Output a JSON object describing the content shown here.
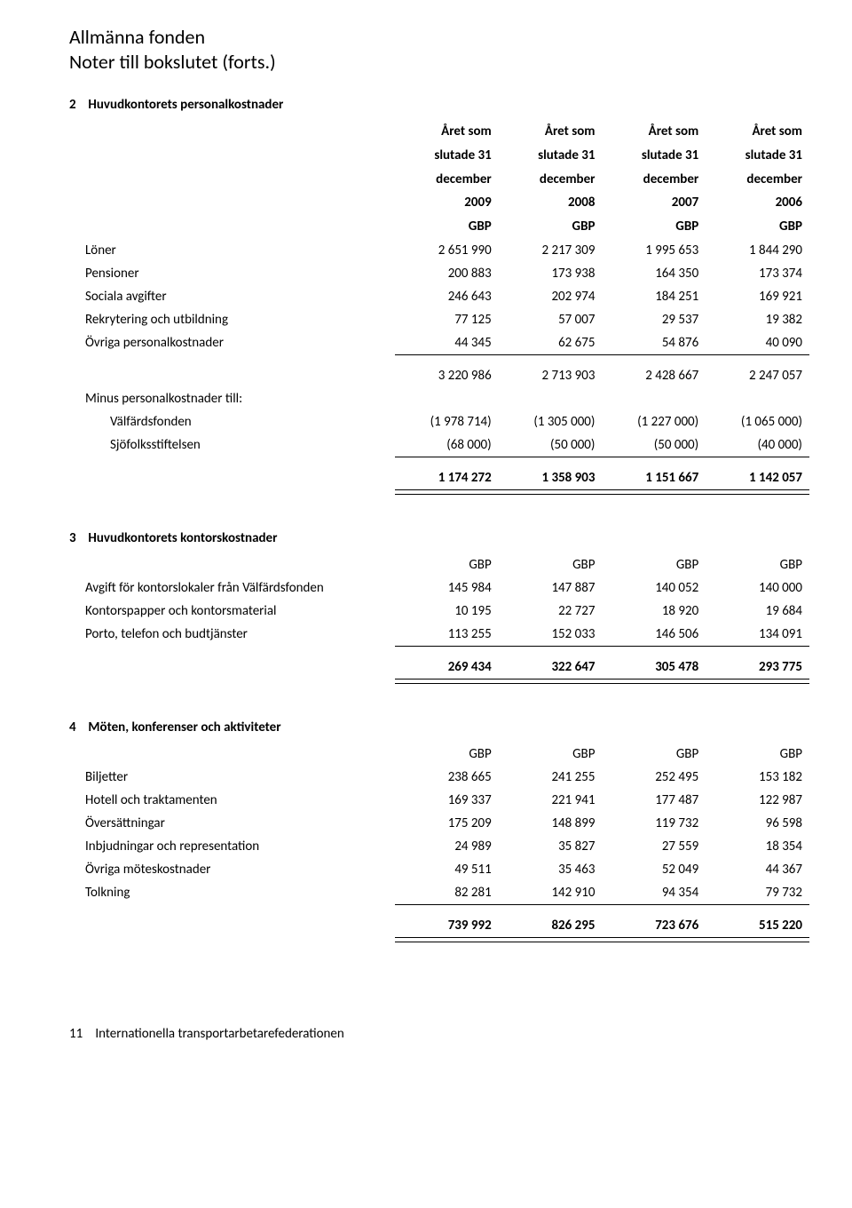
{
  "header": {
    "line1": "Allmänna fonden",
    "line2": "Noter till bokslutet (forts.)"
  },
  "year_headers": {
    "prefix": "Året som",
    "mid": "slutade 31",
    "month": "december",
    "years": [
      "2009",
      "2008",
      "2007",
      "2006"
    ],
    "unit": "GBP"
  },
  "note2": {
    "num": "2",
    "title": "Huvudkontorets personalkostnader",
    "rows": [
      {
        "label": "Löner",
        "v": [
          "2 651 990",
          "2 217 309",
          "1 995 653",
          "1 844 290"
        ]
      },
      {
        "label": "Pensioner",
        "v": [
          "200 883",
          "173 938",
          "164 350",
          "173 374"
        ]
      },
      {
        "label": "Sociala avgifter",
        "v": [
          "246 643",
          "202 974",
          "184 251",
          "169 921"
        ]
      },
      {
        "label": "Rekrytering och utbildning",
        "v": [
          "77 125",
          "57 007",
          "29 537",
          "19 382"
        ]
      },
      {
        "label": "Övriga personalkostnader",
        "v": [
          "44 345",
          "62 675",
          "54 876",
          "40 090"
        ]
      }
    ],
    "subtotal1": [
      "3 220 986",
      "2 713 903",
      "2 428 667",
      "2 247 057"
    ],
    "minus_label": "Minus personalkostnader till:",
    "minus_rows": [
      {
        "label": "Välfärdsfonden",
        "v": [
          "(1 978 714)",
          "(1 305 000)",
          "(1 227 000)",
          "(1 065 000)"
        ]
      },
      {
        "label": "Sjöfolksstiftelsen",
        "v": [
          "(68 000)",
          "(50 000)",
          "(50 000)",
          "(40 000)"
        ]
      }
    ],
    "total": [
      "1 174 272",
      "1 358 903",
      "1 151 667",
      "1 142 057"
    ]
  },
  "note3": {
    "num": "3",
    "title": "Huvudkontorets kontorskostnader",
    "unit_row": [
      "GBP",
      "GBP",
      "GBP",
      "GBP"
    ],
    "rows": [
      {
        "label": "Avgift för kontorslokaler från Välfärdsfonden",
        "v": [
          "145 984",
          "147 887",
          "140 052",
          "140 000"
        ]
      },
      {
        "label": "Kontorspapper och kontorsmaterial",
        "v": [
          "10 195",
          "22 727",
          "18 920",
          "19 684"
        ]
      },
      {
        "label": "Porto, telefon och budtjänster",
        "v": [
          "113 255",
          "152 033",
          "146 506",
          "134 091"
        ]
      }
    ],
    "total": [
      "269 434",
      "322 647",
      "305 478",
      "293 775"
    ]
  },
  "note4": {
    "num": "4",
    "title": "Möten, konferenser och aktiviteter",
    "unit_row": [
      "GBP",
      "GBP",
      "GBP",
      "GBP"
    ],
    "rows": [
      {
        "label": "Biljetter",
        "v": [
          "238 665",
          "241 255",
          "252 495",
          "153 182"
        ]
      },
      {
        "label": "Hotell och traktamenten",
        "v": [
          "169 337",
          "221 941",
          "177 487",
          "122 987"
        ]
      },
      {
        "label": "Översättningar",
        "v": [
          "175 209",
          "148 899",
          "119 732",
          "96 598"
        ]
      },
      {
        "label": "Inbjudningar och representation",
        "v": [
          "24 989",
          "35 827",
          "27 559",
          "18 354"
        ]
      },
      {
        "label": "Övriga möteskostnader",
        "v": [
          "49 511",
          "35 463",
          "52 049",
          "44 367"
        ]
      },
      {
        "label": "Tolkning",
        "v": [
          "82 281",
          "142 910",
          "94 354",
          "79 732"
        ]
      }
    ],
    "total": [
      "739 992",
      "826 295",
      "723 676",
      "515 220"
    ]
  },
  "footer": {
    "page": "11",
    "text": "Internationella transportarbetarefederationen"
  }
}
